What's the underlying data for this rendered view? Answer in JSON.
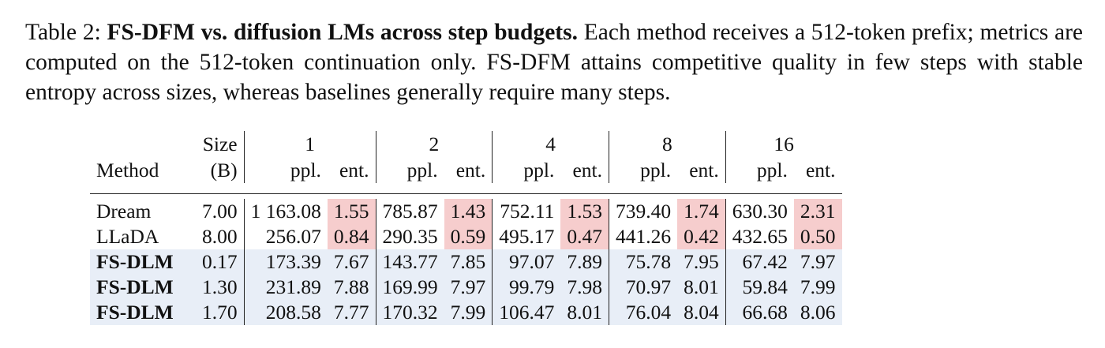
{
  "caption": {
    "label": "Table 2:",
    "title": "FS-DFM vs. diffusion LMs across step budgets.",
    "body": "Each method receives a 512-token prefix; metrics are computed on the 512-token continuation only. FS-DFM attains competitive quality in few steps with stable entropy across sizes, whereas baselines generally require many steps."
  },
  "table": {
    "header": {
      "method": "Method",
      "size_top": "Size",
      "size_bottom": "(B)",
      "steps": [
        "1",
        "2",
        "4",
        "8",
        "16"
      ],
      "ppl": "ppl.",
      "ent": "ent."
    },
    "rows": [
      {
        "method": "Dream",
        "size": "7.00",
        "cells": [
          "1 163.08",
          "1.55",
          "785.87",
          "1.43",
          "752.11",
          "1.53",
          "739.40",
          "1.74",
          "630.30",
          "2.31"
        ],
        "bold": false,
        "blue": false
      },
      {
        "method": "LLaDA",
        "size": "8.00",
        "cells": [
          "256.07",
          "0.84",
          "290.35",
          "0.59",
          "495.17",
          "0.47",
          "441.26",
          "0.42",
          "432.65",
          "0.50"
        ],
        "bold": false,
        "blue": false
      },
      {
        "method": "FS-DLM",
        "size": "0.17",
        "cells": [
          "173.39",
          "7.67",
          "143.77",
          "7.85",
          "97.07",
          "7.89",
          "75.78",
          "7.95",
          "67.42",
          "7.97"
        ],
        "bold": true,
        "blue": true
      },
      {
        "method": "FS-DLM",
        "size": "1.30",
        "cells": [
          "231.89",
          "7.88",
          "169.99",
          "7.97",
          "99.79",
          "7.98",
          "70.97",
          "8.01",
          "59.84",
          "7.99"
        ],
        "bold": true,
        "blue": true
      },
      {
        "method": "FS-DLM",
        "size": "1.70",
        "cells": [
          "208.58",
          "7.77",
          "170.32",
          "7.99",
          "106.47",
          "8.01",
          "76.04",
          "8.04",
          "66.68",
          "8.06"
        ],
        "bold": true,
        "blue": true
      }
    ],
    "highlight_color": "#f6cdcd",
    "blue_row_color": "#e8eef7"
  }
}
